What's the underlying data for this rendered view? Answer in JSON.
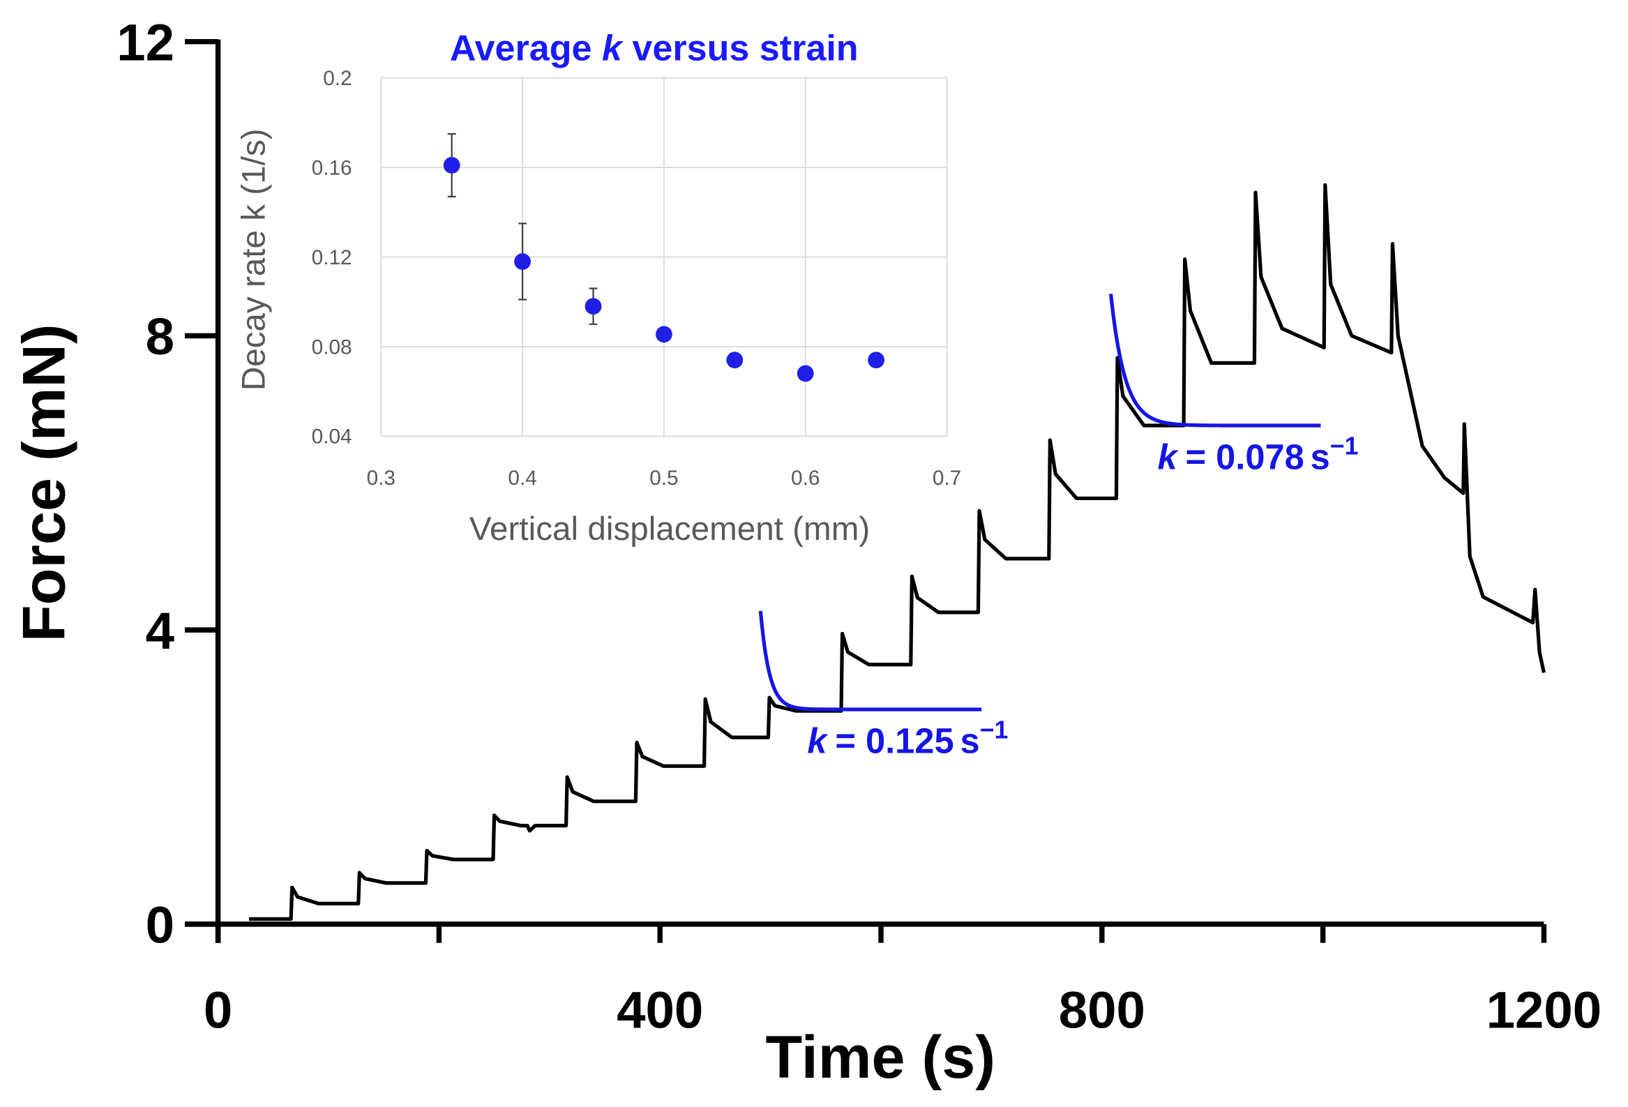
{
  "chart_data": [
    {
      "type": "line",
      "xlabel": "Time (s)",
      "ylabel": "Force (mN)",
      "xlim": [
        0,
        1200
      ],
      "xticks": [
        0,
        400,
        800,
        1200
      ],
      "xminor": [
        200,
        600,
        1000
      ],
      "ylim": [
        0,
        12
      ],
      "yticks": [
        0,
        4,
        8,
        12
      ],
      "color": "#000000",
      "x": [
        28,
        66,
        67,
        72,
        91,
        127,
        128,
        133,
        152,
        188,
        189,
        194,
        213,
        249,
        250,
        255,
        274,
        280,
        282,
        287,
        315,
        316,
        321,
        340,
        378,
        379,
        384,
        403,
        440,
        441,
        446,
        465,
        498,
        499,
        504,
        523,
        564,
        565,
        570,
        589,
        627,
        628,
        633,
        652,
        688,
        689,
        694,
        713,
        752,
        753,
        758,
        777,
        813,
        814,
        819,
        838,
        874,
        875,
        880,
        899,
        938,
        939,
        944,
        963,
        1001,
        1002,
        1007,
        1026,
        1062,
        1063,
        1068,
        1090,
        1110,
        1127,
        1128,
        1133,
        1145,
        1190,
        1192,
        1196,
        1200
      ],
      "values": [
        0.07,
        0.07,
        0.5,
        0.37,
        0.28,
        0.28,
        0.7,
        0.62,
        0.56,
        0.56,
        1.0,
        0.93,
        0.88,
        0.88,
        1.48,
        1.4,
        1.34,
        1.34,
        1.27,
        1.34,
        1.34,
        2.0,
        1.8,
        1.67,
        1.67,
        2.47,
        2.28,
        2.15,
        2.15,
        3.06,
        2.75,
        2.54,
        2.54,
        3.08,
        2.97,
        2.9,
        2.9,
        3.95,
        3.7,
        3.53,
        3.53,
        4.73,
        4.44,
        4.24,
        4.24,
        5.62,
        5.23,
        4.97,
        4.97,
        6.58,
        6.12,
        5.79,
        5.79,
        7.7,
        7.18,
        6.78,
        6.78,
        9.04,
        8.34,
        7.63,
        7.63,
        9.95,
        8.8,
        8.1,
        7.84,
        10.05,
        8.7,
        8.0,
        7.77,
        9.25,
        8.0,
        6.5,
        6.07,
        5.86,
        6.8,
        5.0,
        4.45,
        4.1,
        4.55,
        3.7,
        3.42
      ],
      "fits": [
        {
          "color": "#1515e6",
          "k": 0.125,
          "t_start": 491,
          "y_start": 4.26,
          "plateau": 2.92,
          "t_end": 691,
          "label": {
            "symbol": "k",
            "value": "= 0.125",
            "unit": "s",
            "exponent": "−1"
          }
        },
        {
          "color": "#1515e6",
          "k": 0.078,
          "t_start": 808,
          "y_start": 8.57,
          "plateau": 6.78,
          "t_end": 998,
          "label": {
            "symbol": "k",
            "value": "= 0.078",
            "unit": "s",
            "exponent": "−1"
          }
        }
      ]
    },
    {
      "type": "scatter",
      "title": [
        "Average ",
        "k",
        " versus strain"
      ],
      "xlabel": "Vertical displacement (mm)",
      "ylabel": "Decay rate k (1/s)",
      "xlim": [
        0.3,
        0.7
      ],
      "xticks": [
        0.3,
        0.4,
        0.5,
        0.6,
        0.7
      ],
      "ylim": [
        0.04,
        0.2
      ],
      "yticks": [
        0.04,
        0.08,
        0.12,
        0.16,
        0.2
      ],
      "grid": true,
      "color": "#1f1fe6",
      "x": [
        0.35,
        0.4,
        0.45,
        0.5,
        0.55,
        0.6,
        0.65
      ],
      "values": [
        0.161,
        0.118,
        0.098,
        0.0855,
        0.074,
        0.068,
        0.074
      ],
      "errors": [
        0.014,
        0.017,
        0.008,
        null,
        null,
        null,
        null
      ]
    }
  ]
}
